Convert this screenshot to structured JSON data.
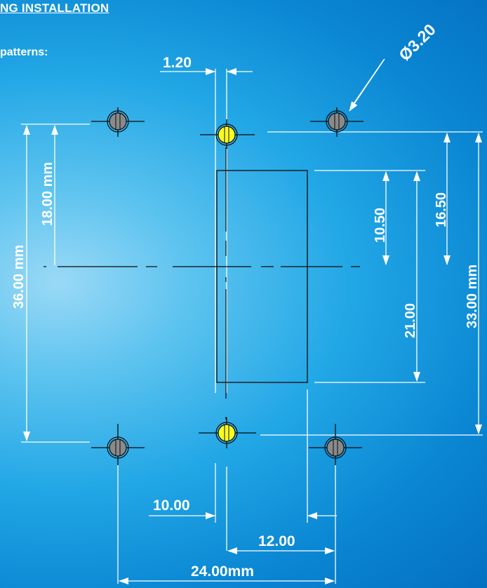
{
  "heading": "NG INSTALLATION",
  "subheading": "patterns:",
  "dimensions": {
    "pin_width": "1.20",
    "hole_diameter": "Ø3.20",
    "half_height": "18.00 mm",
    "full_height": "36.00 mm",
    "top_to_body": "10.50",
    "top_row_offset": "16.50",
    "body_length": "21.00",
    "row_spacing": "33.00 mm",
    "pin_to_left_hole": "10.00",
    "pin_to_right_hole": "12.00",
    "outer_hole_spacing": "24.00mm"
  },
  "colors": {
    "lines": "#ffffff",
    "outline": "#0a0a0a",
    "pin_fill": "#ffff1e",
    "hole_fill": "#8a8a8a"
  }
}
